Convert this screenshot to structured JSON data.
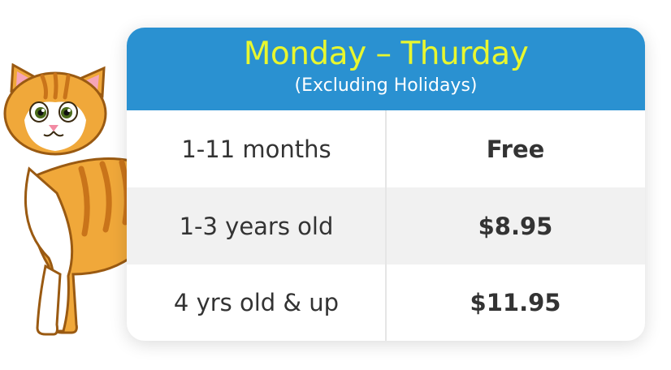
{
  "header": {
    "title": "Monday – Thurday",
    "subtitle": "(Excluding Holidays)"
  },
  "prices": [
    {
      "age": "1-11 months",
      "price": "Free"
    },
    {
      "age": "1-3 years old",
      "price": "$8.95"
    },
    {
      "age": "4 yrs old & up",
      "price": "$11.95"
    }
  ],
  "colors": {
    "header_bg": "#2a91d1",
    "title": "#e8f72f",
    "cat_orange": "#f0a83a"
  },
  "icons": {
    "mascot": "cat-mascot-icon"
  }
}
